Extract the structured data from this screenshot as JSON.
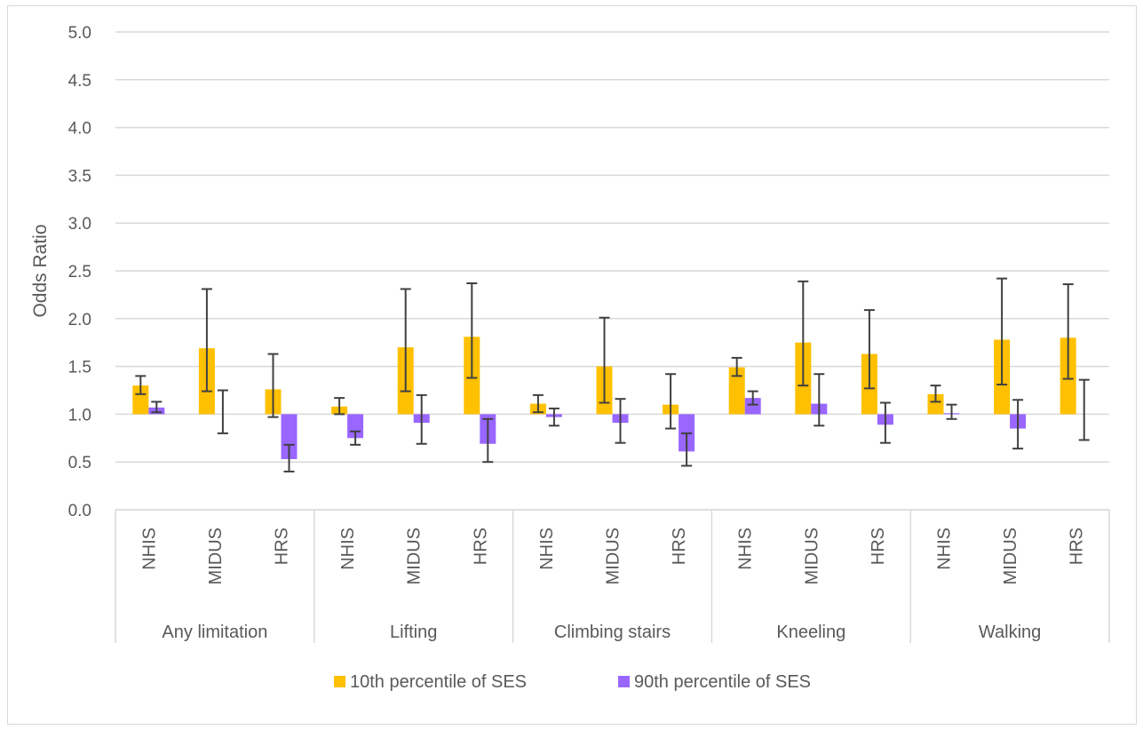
{
  "chart_data": {
    "type": "bar",
    "ylabel": "Odds Ratio",
    "ylim": [
      0,
      5
    ],
    "yticks": [
      "0.0",
      "0.5",
      "1.0",
      "1.5",
      "2.0",
      "2.5",
      "3.0",
      "3.5",
      "4.0",
      "4.5",
      "5.0"
    ],
    "grid": true,
    "baseline": 1.0,
    "legend_position": "bottom",
    "groups": [
      {
        "label": "Any limitation",
        "surveys": [
          "NHIS",
          "MIDUS",
          "HRS"
        ]
      },
      {
        "label": "Lifting",
        "surveys": [
          "NHIS",
          "MIDUS",
          "HRS"
        ]
      },
      {
        "label": "Climbing stairs",
        "surveys": [
          "NHIS",
          "MIDUS",
          "HRS"
        ]
      },
      {
        "label": "Kneeling",
        "surveys": [
          "NHIS",
          "MIDUS",
          "HRS"
        ]
      },
      {
        "label": "Walking",
        "surveys": [
          "NHIS",
          "MIDUS",
          "HRS"
        ]
      }
    ],
    "series": [
      {
        "name": "10th percentile of SES",
        "color": "#FFC000",
        "values": [
          1.3,
          1.69,
          1.26,
          1.08,
          1.7,
          1.81,
          1.11,
          1.5,
          1.1,
          1.49,
          1.75,
          1.63,
          1.21,
          1.78,
          1.8
        ],
        "lower": [
          1.21,
          1.24,
          0.97,
          1.0,
          1.24,
          1.38,
          1.02,
          1.12,
          0.85,
          1.4,
          1.3,
          1.27,
          1.13,
          1.31,
          1.37
        ],
        "upper": [
          1.4,
          2.31,
          1.63,
          1.17,
          2.31,
          2.37,
          1.2,
          2.01,
          1.42,
          1.59,
          2.39,
          2.09,
          1.3,
          2.42,
          2.36
        ]
      },
      {
        "name": "90th percentile of SES",
        "color": "#9966FF",
        "values": [
          1.07,
          1.0,
          0.53,
          0.75,
          0.91,
          0.69,
          0.97,
          0.91,
          0.61,
          1.17,
          1.11,
          0.89,
          1.01,
          0.85,
          1.0
        ],
        "lower": [
          1.02,
          0.8,
          0.4,
          0.68,
          0.69,
          0.5,
          0.88,
          0.7,
          0.46,
          1.1,
          0.88,
          0.7,
          0.95,
          0.64,
          0.73
        ],
        "upper": [
          1.13,
          1.25,
          0.68,
          0.82,
          1.2,
          0.95,
          1.06,
          1.16,
          0.8,
          1.24,
          1.42,
          1.12,
          1.1,
          1.15,
          1.36
        ]
      }
    ]
  }
}
